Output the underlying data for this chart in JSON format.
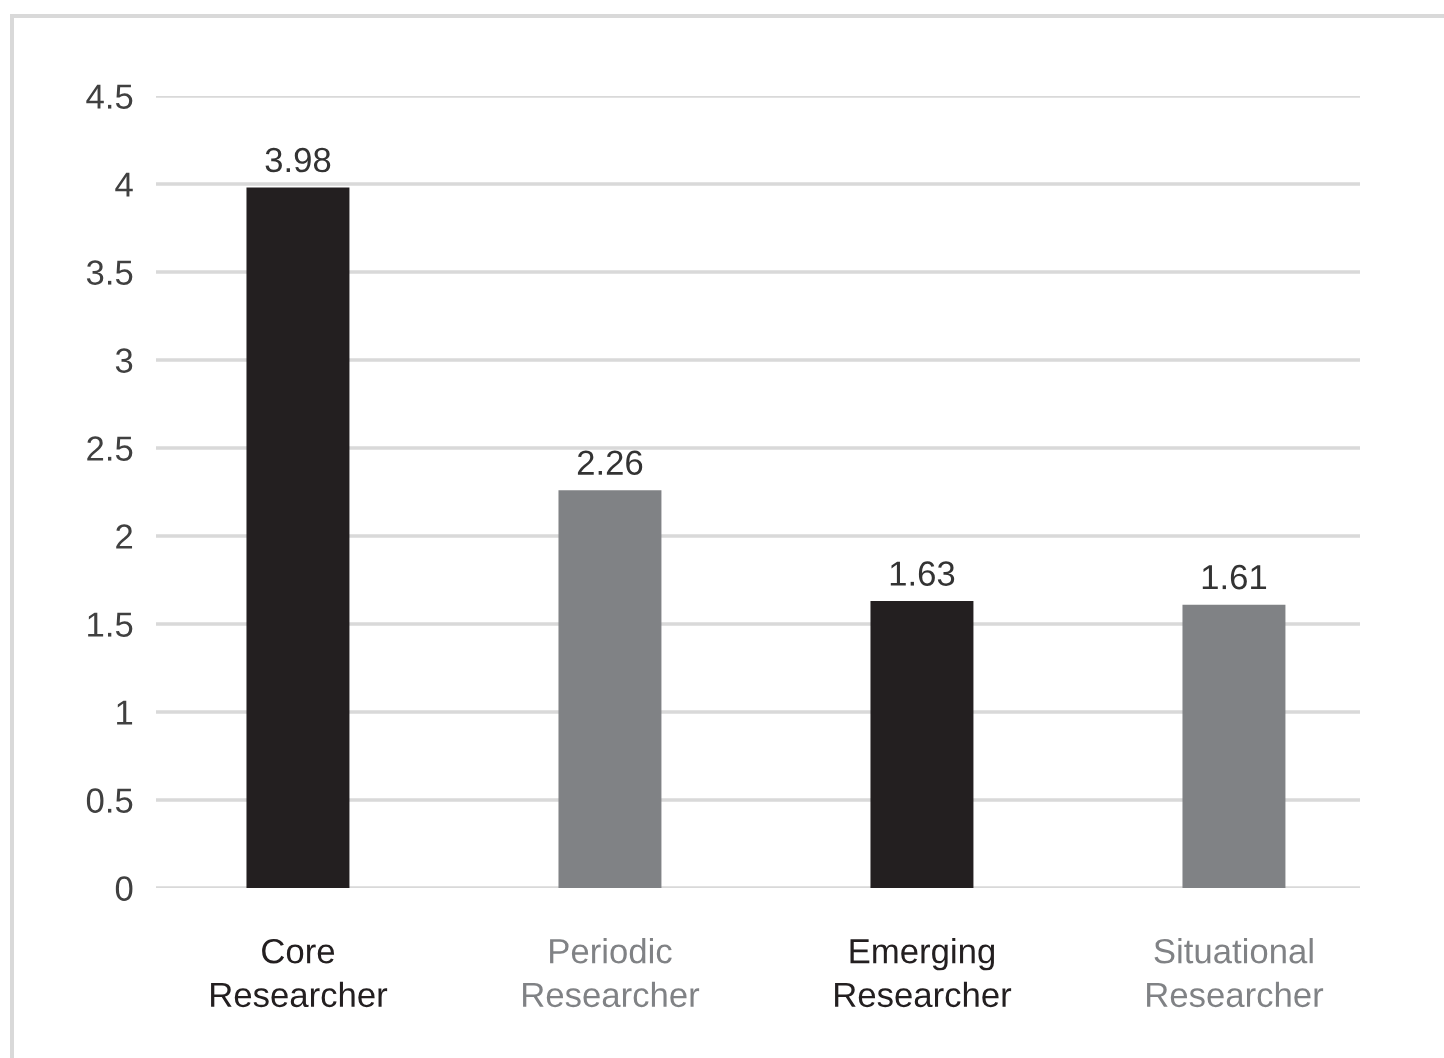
{
  "chart_data": {
    "type": "bar",
    "categories": [
      "Core\nResearcher",
      "Periodic\nResearcher",
      "Emerging\nResearcher",
      "Situational\nResearcher"
    ],
    "values": [
      3.98,
      2.26,
      1.63,
      1.61
    ],
    "colors": [
      "#231f20",
      "#808285",
      "#231f20",
      "#808285"
    ],
    "ylim": [
      0,
      4.5
    ],
    "yticks": [
      0,
      0.5,
      1,
      1.5,
      2,
      2.5,
      3,
      3.5,
      4,
      4.5
    ],
    "grid": "y",
    "data_labels": true,
    "legend": false
  }
}
